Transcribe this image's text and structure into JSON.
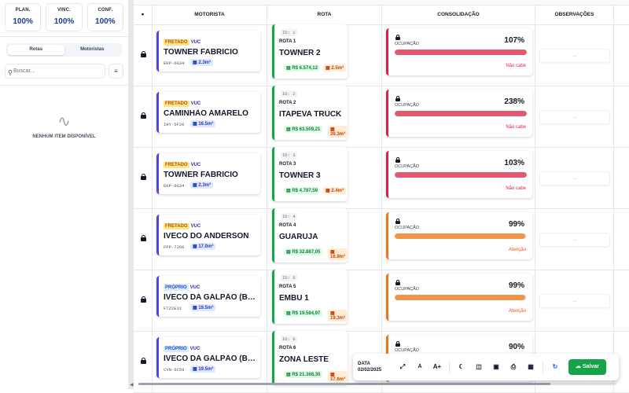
{
  "stats": [
    {
      "label": "PLAN.",
      "value": "100%"
    },
    {
      "label": "VINC.",
      "value": "100%"
    },
    {
      "label": "CONF.",
      "value": "100%"
    }
  ],
  "tabs": {
    "rotas": "Rotas",
    "motoristas": "Motoristas"
  },
  "search": {
    "placeholder": "Buscar..."
  },
  "empty": {
    "text": "NENHUM ITEM DISPONÍVEL"
  },
  "table": {
    "headers": {
      "motorista": "MOTORISTA",
      "rota": "ROTA",
      "consolidacao": "CONSOLIDAÇÃO",
      "observacoes": "OBSERVAÇÕES"
    }
  },
  "rows": [
    {
      "owner": "FRETADO",
      "owner_type": "fretado",
      "vtype": "VUC",
      "driver": "TOWNER FABRICIO",
      "plate": "EKP-6G34",
      "volume": "2.3m³",
      "id": "ID: 1",
      "rota_label": "ROTA 1",
      "rota": "TOWNER 2",
      "money": "R$ 6.574,12",
      "rvol": "2.5m³",
      "occ_label": "OCUPAÇÃO",
      "pct": "107%",
      "pct_value": 107,
      "status": "Não cabe",
      "level": "red",
      "obs": "..."
    },
    {
      "owner": "FRETADO",
      "owner_type": "fretado",
      "vtype": "VUC",
      "driver": "CAMINHÃO AMARELO",
      "plate": "IHY-5F20",
      "volume": "16.5m³",
      "id": "ID: 2",
      "rota_label": "ROTA 2",
      "rota": "ITAPEVA TRUCK",
      "money": "R$ 63.509,21",
      "rvol": "39.3m³",
      "occ_label": "OCUPAÇÃO",
      "pct": "238%",
      "pct_value": 238,
      "status": "Não cabe",
      "level": "red",
      "obs": "..."
    },
    {
      "owner": "FRETADO",
      "owner_type": "fretado",
      "vtype": "VUC",
      "driver": "TOWNER FABRICIO",
      "plate": "EKP-6G34",
      "volume": "2.3m³",
      "id": "ID: 3",
      "rota_label": "ROTA 3",
      "rota": "TOWNER 3",
      "money": "R$ 4.787,59",
      "rvol": "2.4m³",
      "occ_label": "OCUPAÇÃO",
      "pct": "103%",
      "pct_value": 103,
      "status": "Não cabe",
      "level": "red",
      "obs": "..."
    },
    {
      "owner": "FRETADO",
      "owner_type": "fretado",
      "vtype": "VUC",
      "driver": "IVECO DO ANDERSON",
      "plate": "FPP-7J60",
      "volume": "17.0m³",
      "id": "ID: 4",
      "rota_label": "ROTA 4",
      "rota": "GUARUJA",
      "money": "R$ 32.887,05",
      "rvol": "16.9m³",
      "occ_label": "OCUPAÇÃO",
      "pct": "99%",
      "pct_value": 99,
      "status": "Atenção",
      "level": "orange",
      "obs": "..."
    },
    {
      "owner": "PRÓPRIO",
      "owner_type": "proprio",
      "vtype": "VUC",
      "driver": "IVECO DA GALPÃO (BRANCO)",
      "plate": "FTZ2E31",
      "volume": "19.5m³",
      "id": "ID: 5",
      "rota_label": "ROTA 5",
      "rota": "EMBU 1",
      "money": "R$ 19.584,97",
      "rvol": "19.3m³",
      "occ_label": "OCUPAÇÃO",
      "pct": "99%",
      "pct_value": 99,
      "status": "Atenção",
      "level": "orange",
      "obs": "..."
    },
    {
      "owner": "PRÓPRIO",
      "owner_type": "proprio",
      "vtype": "VUC",
      "driver": "IVECO DA GALPÃO (BRANCO)",
      "plate": "CVN-6C59",
      "volume": "19.5m³",
      "id": "ID: 6",
      "rota_label": "ROTA 6",
      "rota": "ZONA LESTE",
      "money": "R$ 21.368,30",
      "rvol": "17.6m³",
      "occ_label": "OCUPAÇÃO",
      "pct": "90%",
      "pct_value": 90,
      "status": "",
      "level": "orange",
      "obs": "..."
    }
  ],
  "toolbar": {
    "date_label": "DATA",
    "date": "02/02/2025",
    "font_small": "A",
    "font_large": "A+",
    "save": "Salvar"
  },
  "colors": {
    "accent": "#16a34a",
    "danger": "#e5566f",
    "warning": "#f0954a",
    "primary": "#4f46e5"
  }
}
